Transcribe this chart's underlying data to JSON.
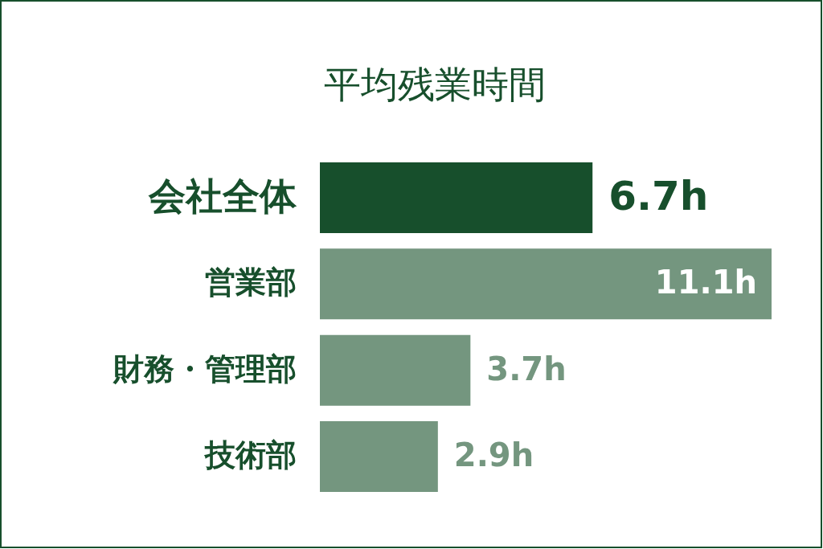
{
  "chart_data": {
    "type": "bar",
    "orientation": "horizontal",
    "title": "平均残業時間",
    "categories": [
      "会社全体",
      "営業部",
      "財務・管理部",
      "技術部"
    ],
    "values": [
      6.7,
      11.1,
      3.7,
      2.9
    ],
    "colors": [
      "#174f2c",
      "#74967f",
      "#74967f",
      "#74967f"
    ],
    "value_labels": [
      "6.7h",
      "11.1h",
      "3.7h",
      "2.9h"
    ]
  }
}
